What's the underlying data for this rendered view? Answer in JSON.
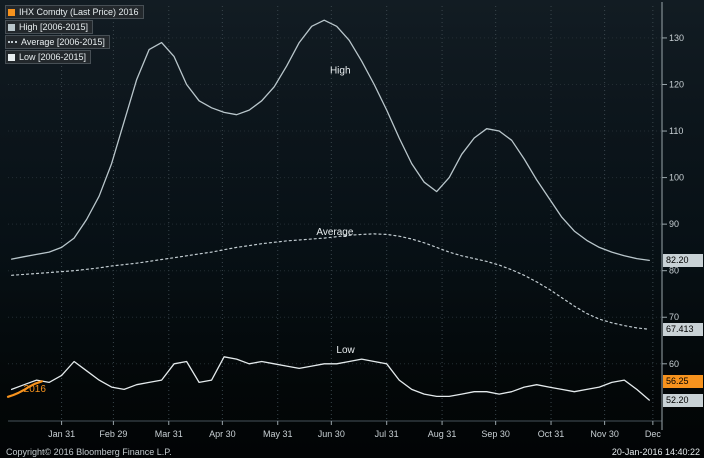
{
  "legend": {
    "items": [
      {
        "label": "IHX Comdty (Last Price) 2016",
        "swatch_color": "#f7931e",
        "swatch_style": "solid"
      },
      {
        "label": "High [2006-2015]",
        "swatch_color": "#b9c6cb",
        "swatch_style": "solid"
      },
      {
        "label": "Average [2006-2015]",
        "swatch_color": "#c2ccd1",
        "swatch_style": "dotted"
      },
      {
        "label": "Low [2006-2015]",
        "swatch_color": "#e9eff1",
        "swatch_style": "solid"
      }
    ]
  },
  "y_axis": {
    "ticks": [
      130,
      120,
      110,
      100,
      90,
      80,
      70,
      60
    ],
    "badges": [
      {
        "label": "82.20",
        "value": 82.2,
        "bg": "#c9d2d6",
        "fg": "#000000"
      },
      {
        "label": "67.413",
        "value": 67.413,
        "bg": "#c9d2d6",
        "fg": "#000000"
      },
      {
        "label": "56.25",
        "value": 56.25,
        "bg": "#f7931e",
        "fg": "#000000"
      },
      {
        "label": "52.20",
        "value": 52.2,
        "bg": "#c9d2d6",
        "fg": "#000000"
      }
    ]
  },
  "annotations": [
    {
      "text": "High",
      "day": 187,
      "value": 123.0,
      "color": "#e8edef"
    },
    {
      "text": "Average",
      "day": 184,
      "value": 88.3,
      "color": "#e8edef"
    },
    {
      "text": "Low",
      "day": 190,
      "value": 63.0,
      "color": "#e8edef"
    },
    {
      "text": "2016",
      "day": 16,
      "value": 54.6,
      "color": "#f7931e"
    }
  ],
  "footer": {
    "copyright": "Copyright© 2016 Bloomberg Finance L.P.",
    "timestamp": "20-Jan-2016 14:40:22"
  },
  "chart_data": {
    "type": "line",
    "x_unit": "day_of_year",
    "x_range": [
      1,
      366
    ],
    "ylim": [
      49,
      136
    ],
    "grid": "dotted",
    "legend_position": "top-left",
    "y_ticks": [
      60,
      70,
      80,
      90,
      100,
      110,
      120,
      130
    ],
    "x_tick_labels": [
      "Jan 31",
      "Feb 29",
      "Mar 31",
      "Apr 30",
      "May 31",
      "Jun 30",
      "Jul 31",
      "Aug 31",
      "Sep 30",
      "Oct 31",
      "Nov 30",
      "Dec"
    ],
    "x_tick_days": [
      31,
      60,
      91,
      121,
      152,
      182,
      213,
      244,
      274,
      305,
      335,
      362
    ],
    "x_days": [
      3,
      10,
      17,
      24,
      31,
      38,
      45,
      52,
      59,
      66,
      73,
      80,
      87,
      94,
      101,
      108,
      115,
      122,
      129,
      136,
      143,
      150,
      157,
      164,
      171,
      178,
      185,
      192,
      199,
      206,
      213,
      220,
      227,
      234,
      241,
      248,
      255,
      262,
      269,
      276,
      283,
      290,
      297,
      304,
      311,
      318,
      325,
      332,
      339,
      346,
      353,
      360
    ],
    "series": [
      {
        "id": "high",
        "name": "High [2006-2015]",
        "color": "#b9c6cb",
        "dash": "solid",
        "width": 1.3,
        "values": [
          82.5,
          83,
          83.5,
          84,
          85,
          87,
          91,
          96,
          103,
          112,
          121,
          127.5,
          129,
          126,
          120,
          116.5,
          115,
          114,
          113.5,
          114.5,
          116.5,
          119.5,
          124,
          129,
          132.5,
          133.8,
          132.5,
          129.5,
          125,
          120,
          114.5,
          108.5,
          103,
          99,
          97,
          100,
          105,
          108.5,
          110.5,
          110,
          108,
          104,
          99.5,
          95.5,
          91.5,
          88.5,
          86.5,
          85,
          84,
          83.2,
          82.6,
          82.2
        ]
      },
      {
        "id": "average",
        "name": "Average [2006-2015]",
        "color": "#c2ccd1",
        "dash": "dotted",
        "width": 1.2,
        "values": [
          79,
          79.2,
          79.4,
          79.6,
          79.8,
          80,
          80.3,
          80.6,
          81,
          81.3,
          81.6,
          82,
          82.4,
          82.8,
          83.2,
          83.6,
          84,
          84.5,
          85,
          85.4,
          85.8,
          86.1,
          86.4,
          86.6,
          86.8,
          87,
          87.3,
          87.6,
          87.8,
          87.9,
          87.8,
          87.4,
          86.8,
          86,
          85,
          84,
          83.2,
          82.6,
          82,
          81.2,
          80.2,
          79,
          77.6,
          76,
          74.2,
          72.4,
          70.8,
          69.6,
          68.8,
          68.2,
          67.7,
          67.413
        ]
      },
      {
        "id": "low",
        "name": "Low [2006-2015]",
        "color": "#e4eaec",
        "dash": "solid",
        "width": 1.3,
        "values": [
          54.5,
          55.5,
          56.5,
          56,
          57.5,
          60.5,
          58.5,
          56.5,
          55,
          54.5,
          55.5,
          56,
          56.5,
          60,
          60.5,
          56,
          56.5,
          61.5,
          61,
          60,
          60.5,
          60,
          59.5,
          59,
          59.5,
          60,
          60,
          60.5,
          61,
          60.5,
          60,
          56.5,
          54.5,
          53.5,
          53,
          53,
          53.5,
          54,
          54,
          53.5,
          54,
          55,
          55.5,
          55,
          54.5,
          54,
          54.5,
          55,
          56,
          56.5,
          54.5,
          52.2
        ]
      },
      {
        "id": "price-2016",
        "name": "IHX Comdty (Last Price) 2016",
        "color": "#f7931e",
        "dash": "solid",
        "width": 2.2,
        "x": [
          1,
          4,
          7,
          10,
          13,
          16,
          20
        ],
        "values": [
          52.9,
          53.3,
          53.8,
          54.4,
          55.1,
          55.7,
          56.25
        ]
      }
    ],
    "last_values": {
      "high": 82.2,
      "average": 67.413,
      "price_2016": 56.25,
      "low": 52.2
    }
  }
}
